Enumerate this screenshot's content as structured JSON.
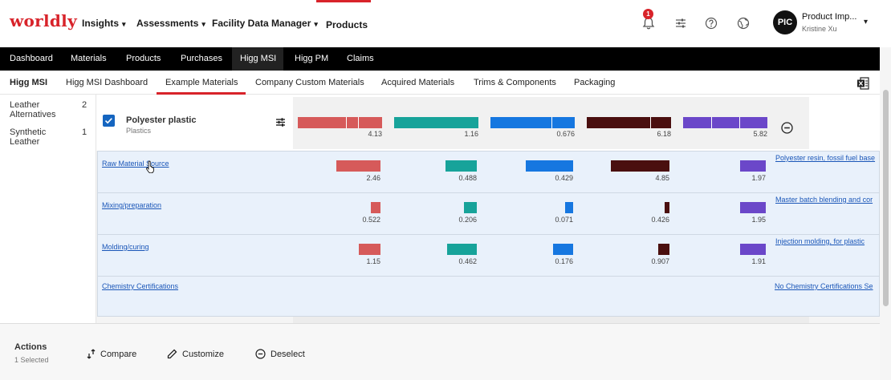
{
  "brand": {
    "logo": "worldly",
    "accent": "#d8232a"
  },
  "topnav": {
    "insights": "Insights",
    "assessments": "Assessments",
    "facility_data_manager": "Facility Data Manager",
    "products": "Products"
  },
  "notifications": {
    "count": "1"
  },
  "user": {
    "initials": "PIC",
    "name": "Product Imp...",
    "sub": "Kristine Xu"
  },
  "mainnav": [
    "Dashboard",
    "Materials",
    "Products",
    "Purchases",
    "Higg MSI",
    "Higg PM",
    "Claims"
  ],
  "subnav": {
    "section": "Higg MSI",
    "items": [
      "Higg MSI Dashboard",
      "Example Materials",
      "Company Custom Materials",
      "Acquired Materials",
      "Trims & Components",
      "Packaging"
    ]
  },
  "sidebar": {
    "items": [
      {
        "label": "Leather Alternatives",
        "count": "2"
      },
      {
        "label": "Synthetic Leather",
        "count": "1"
      }
    ]
  },
  "material": {
    "name": "Polyester plastic",
    "category": "Plastics",
    "values": [
      "4.13",
      "1.16",
      "0.676",
      "6.18",
      "5.82"
    ]
  },
  "impact_colors": [
    "#d65a5a",
    "#17a39a",
    "#1677e0",
    "#4a0f0f",
    "#6b47c9"
  ],
  "stages": [
    {
      "name": "Raw Material Source",
      "values": [
        "2.46",
        "0.488",
        "0.429",
        "4.85",
        "1.97"
      ],
      "desc": "Polyester resin, fossil fuel base"
    },
    {
      "name": "Mixing/preparation",
      "values": [
        "0.522",
        "0.206",
        "0.071",
        "0.426",
        "1.95"
      ],
      "desc": "Master batch blending and cor"
    },
    {
      "name": "Molding/curing",
      "values": [
        "1.15",
        "0.462",
        "0.176",
        "0.907",
        "1.91"
      ],
      "desc": "Injection molding, for plastic"
    },
    {
      "name": "Chemistry Certifications",
      "values": [],
      "desc": "No Chemistry Certifications Se"
    }
  ],
  "actions": {
    "title": "Actions",
    "selected": "1 Selected",
    "compare": "Compare",
    "customize": "Customize",
    "deselect": "Deselect"
  }
}
